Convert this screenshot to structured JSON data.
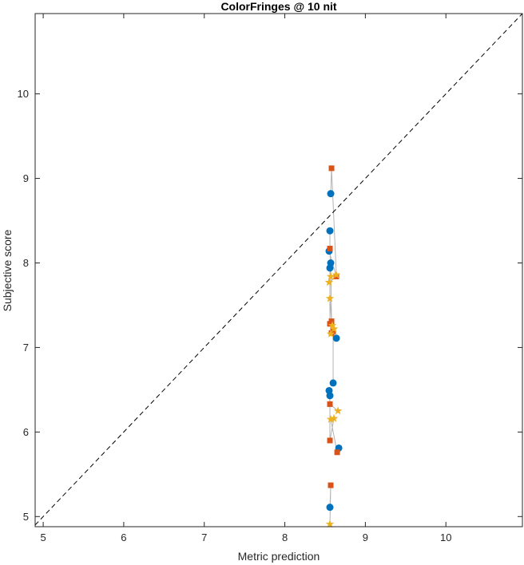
{
  "chart_data": {
    "type": "scatter",
    "title": "ColorFringes @ 10 nit",
    "xlabel": "Metric prediction",
    "ylabel": "Subjective score",
    "xlim": [
      4.9,
      10.95
    ],
    "ylim": [
      4.88,
      10.95
    ],
    "xticks": [
      "5",
      "6",
      "7",
      "8",
      "9",
      "10"
    ],
    "yticks": [
      "5",
      "6",
      "7",
      "8",
      "9",
      "10"
    ],
    "grid": false,
    "identity_line": {
      "style": "dashed",
      "color": "#000000"
    },
    "connector_color": "#b3b3b3",
    "series": [
      {
        "marker": "circle",
        "color": "#0072bd",
        "points": [
          [
            8.57,
            8.82
          ],
          [
            8.56,
            8.38
          ],
          [
            8.55,
            8.14
          ],
          [
            8.57,
            8.0
          ],
          [
            8.56,
            7.94
          ],
          [
            8.64,
            7.11
          ],
          [
            8.6,
            6.58
          ],
          [
            8.55,
            6.49
          ],
          [
            8.56,
            6.43
          ],
          [
            8.67,
            5.81
          ],
          [
            8.56,
            5.11
          ]
        ]
      },
      {
        "marker": "square",
        "color": "#d95319",
        "points": [
          [
            8.58,
            9.12
          ],
          [
            8.56,
            8.17
          ],
          [
            8.64,
            7.84
          ],
          [
            8.58,
            7.31
          ],
          [
            8.56,
            7.28
          ],
          [
            8.58,
            7.17
          ],
          [
            8.6,
            7.19
          ],
          [
            8.56,
            6.33
          ],
          [
            8.56,
            5.9
          ],
          [
            8.65,
            5.76
          ],
          [
            8.57,
            5.37
          ]
        ]
      },
      {
        "marker": "star",
        "color": "#edb120",
        "points": [
          [
            8.64,
            7.86
          ],
          [
            8.57,
            7.84
          ],
          [
            8.55,
            7.77
          ],
          [
            8.56,
            7.58
          ],
          [
            8.59,
            7.26
          ],
          [
            8.57,
            7.16
          ],
          [
            8.61,
            7.22
          ],
          [
            8.66,
            6.25
          ],
          [
            8.61,
            6.16
          ],
          [
            8.57,
            6.15
          ],
          [
            8.56,
            4.91
          ]
        ]
      }
    ]
  }
}
